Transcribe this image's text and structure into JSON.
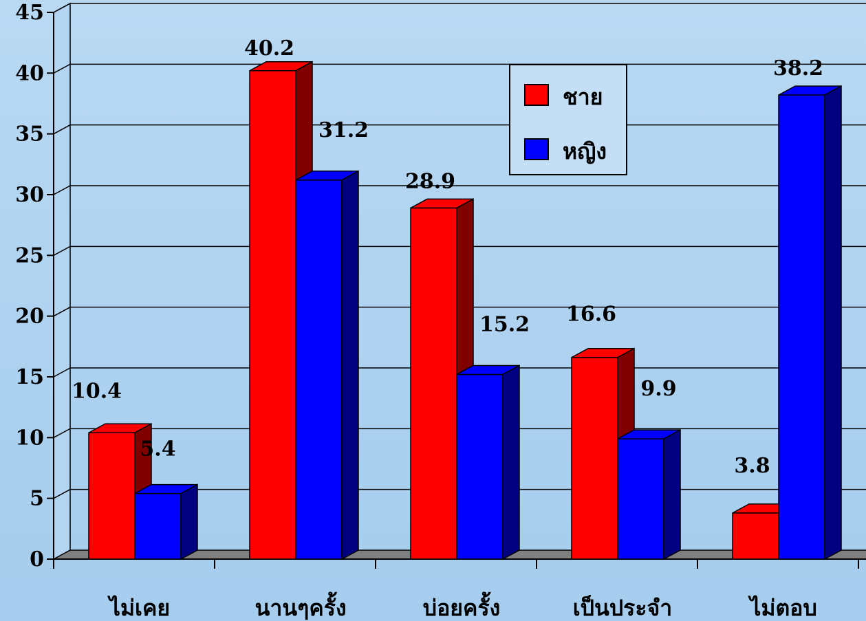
{
  "chart_data": {
    "type": "bar",
    "categories": [
      "ไม่เคย",
      "นานๆครั้ง",
      "บ่อยครั้ง",
      "เป็นประจำ",
      "ไม่ตอบ"
    ],
    "series": [
      {
        "name": "ชาย",
        "values": [
          10.4,
          40.2,
          28.9,
          16.6,
          3.8
        ],
        "color": "#ff0000",
        "side_color": "#800000"
      },
      {
        "name": "หญิง",
        "values": [
          5.4,
          31.2,
          15.2,
          9.9,
          38.2
        ],
        "color": "#0000ff",
        "side_color": "#000080"
      }
    ],
    "ylim": [
      0,
      45
    ],
    "yticks": [
      0,
      5,
      10,
      15,
      20,
      25,
      30,
      35,
      40,
      45
    ],
    "grid": true,
    "legend_position": "top-center",
    "style": "3d-bar"
  }
}
